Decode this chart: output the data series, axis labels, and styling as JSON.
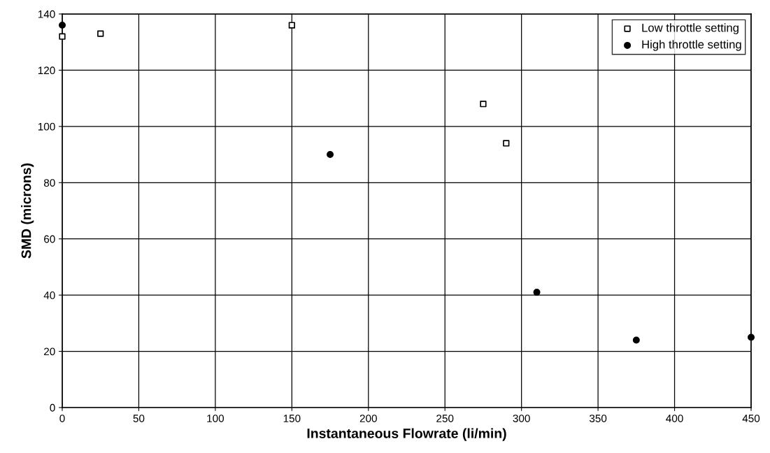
{
  "chart_data": {
    "type": "scatter",
    "xlabel": "Instantaneous Flowrate (li/min)",
    "ylabel": "SMD (microns)",
    "series": [
      {
        "name": "Low throttle setting",
        "color": "#000000",
        "marker": "square",
        "x": [
          0,
          25,
          150,
          275,
          290
        ],
        "values": [
          132,
          133,
          136,
          108,
          94
        ]
      },
      {
        "name": "High throttle setting",
        "color": "#000000",
        "marker": "circle",
        "x": [
          0,
          175,
          310,
          375,
          450
        ],
        "values": [
          136,
          90,
          41,
          24,
          25
        ]
      }
    ],
    "xlim": [
      0,
      450
    ],
    "xticks": [
      0,
      50,
      100,
      150,
      200,
      250,
      300,
      350,
      400,
      450
    ],
    "ylim": [
      0,
      140
    ],
    "yticks": [
      0,
      20,
      40,
      60,
      80,
      100,
      120,
      140
    ],
    "grid": true,
    "legend": "top right"
  }
}
